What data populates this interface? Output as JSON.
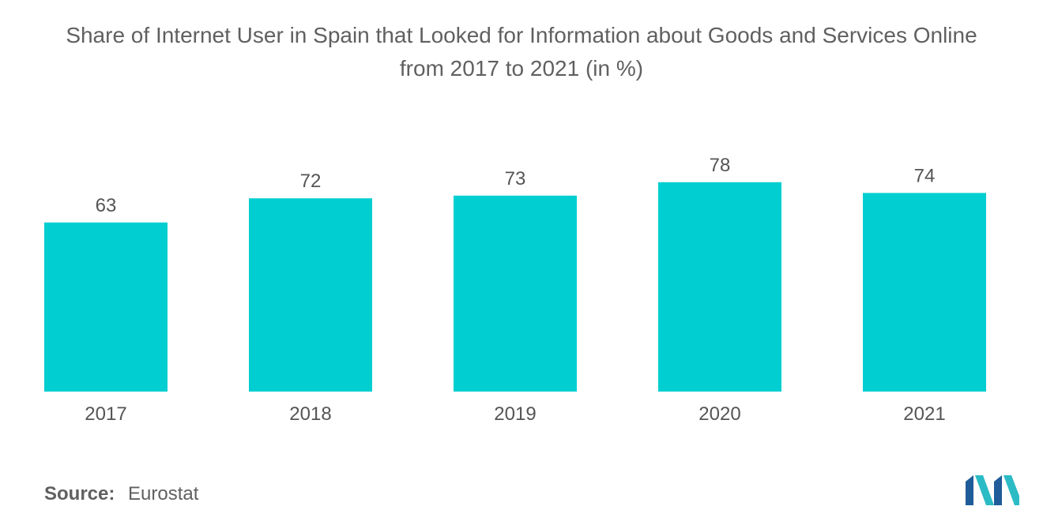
{
  "header": {
    "title_line1": "Share of Internet User in Spain that Looked for Information about Goods and Services Online",
    "title_line2": "from 2017 to 2021 (in %)"
  },
  "chart_data": {
    "type": "bar",
    "title": "Share of Internet User in Spain that Looked for Information about Goods and Services Online from 2017 to 2021 (in %)",
    "categories": [
      "2017",
      "2018",
      "2019",
      "2020",
      "2021"
    ],
    "values": [
      63,
      72,
      73,
      78,
      74
    ],
    "xlabel": "",
    "ylabel": "",
    "ylim": [
      0,
      78
    ],
    "grid": false,
    "legend": "none",
    "bar_color": "#00CED1"
  },
  "footer": {
    "source_label": "Source:",
    "source_value": "Eurostat"
  },
  "logo": {
    "icon": "company-logo-icon",
    "color_dark": "#1F5C99",
    "color_light": "#2BBBC5"
  }
}
